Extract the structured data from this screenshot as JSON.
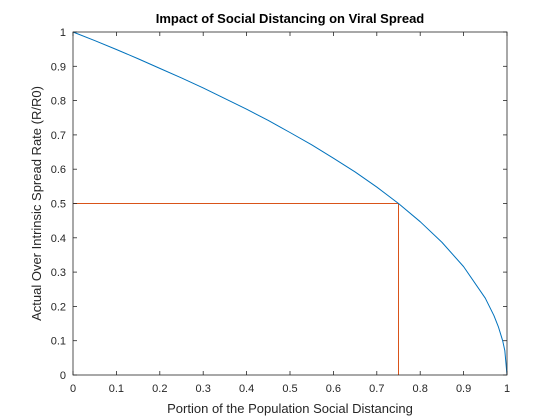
{
  "chart_data": {
    "type": "line",
    "title": "Impact of Social Distancing on Viral Spread",
    "xlabel": "Portion of the Population Social Distancing",
    "ylabel": "Actual Over Intrinsic Spread Rate (R/R0)",
    "xlim": [
      0,
      1
    ],
    "ylim": [
      0,
      1
    ],
    "xticks": [
      "0",
      "0.1",
      "0.2",
      "0.3",
      "0.4",
      "0.5",
      "0.6",
      "0.7",
      "0.8",
      "0.9",
      "1"
    ],
    "yticks": [
      "0",
      "0.1",
      "0.2",
      "0.3",
      "0.4",
      "0.5",
      "0.6",
      "0.7",
      "0.8",
      "0.9",
      "1"
    ],
    "grid": false,
    "series": [
      {
        "color": "#0072BD",
        "x": [
          0,
          0.05,
          0.1,
          0.15,
          0.2,
          0.25,
          0.3,
          0.35,
          0.4,
          0.45,
          0.5,
          0.55,
          0.6,
          0.65,
          0.7,
          0.75,
          0.8,
          0.85,
          0.9,
          0.95,
          0.97,
          0.98,
          0.99,
          0.995,
          1
        ],
        "y": [
          1,
          0.975,
          0.949,
          0.922,
          0.894,
          0.866,
          0.837,
          0.806,
          0.775,
          0.742,
          0.707,
          0.671,
          0.632,
          0.592,
          0.548,
          0.5,
          0.447,
          0.387,
          0.316,
          0.224,
          0.173,
          0.141,
          0.1,
          0.071,
          0
        ]
      }
    ],
    "reference_lines": [
      {
        "color": "#D95319",
        "x": [
          0,
          0.75
        ],
        "y": [
          0.5,
          0.5
        ]
      },
      {
        "color": "#D95319",
        "x": [
          0.75,
          0.75
        ],
        "y": [
          0.5,
          0
        ]
      }
    ]
  }
}
